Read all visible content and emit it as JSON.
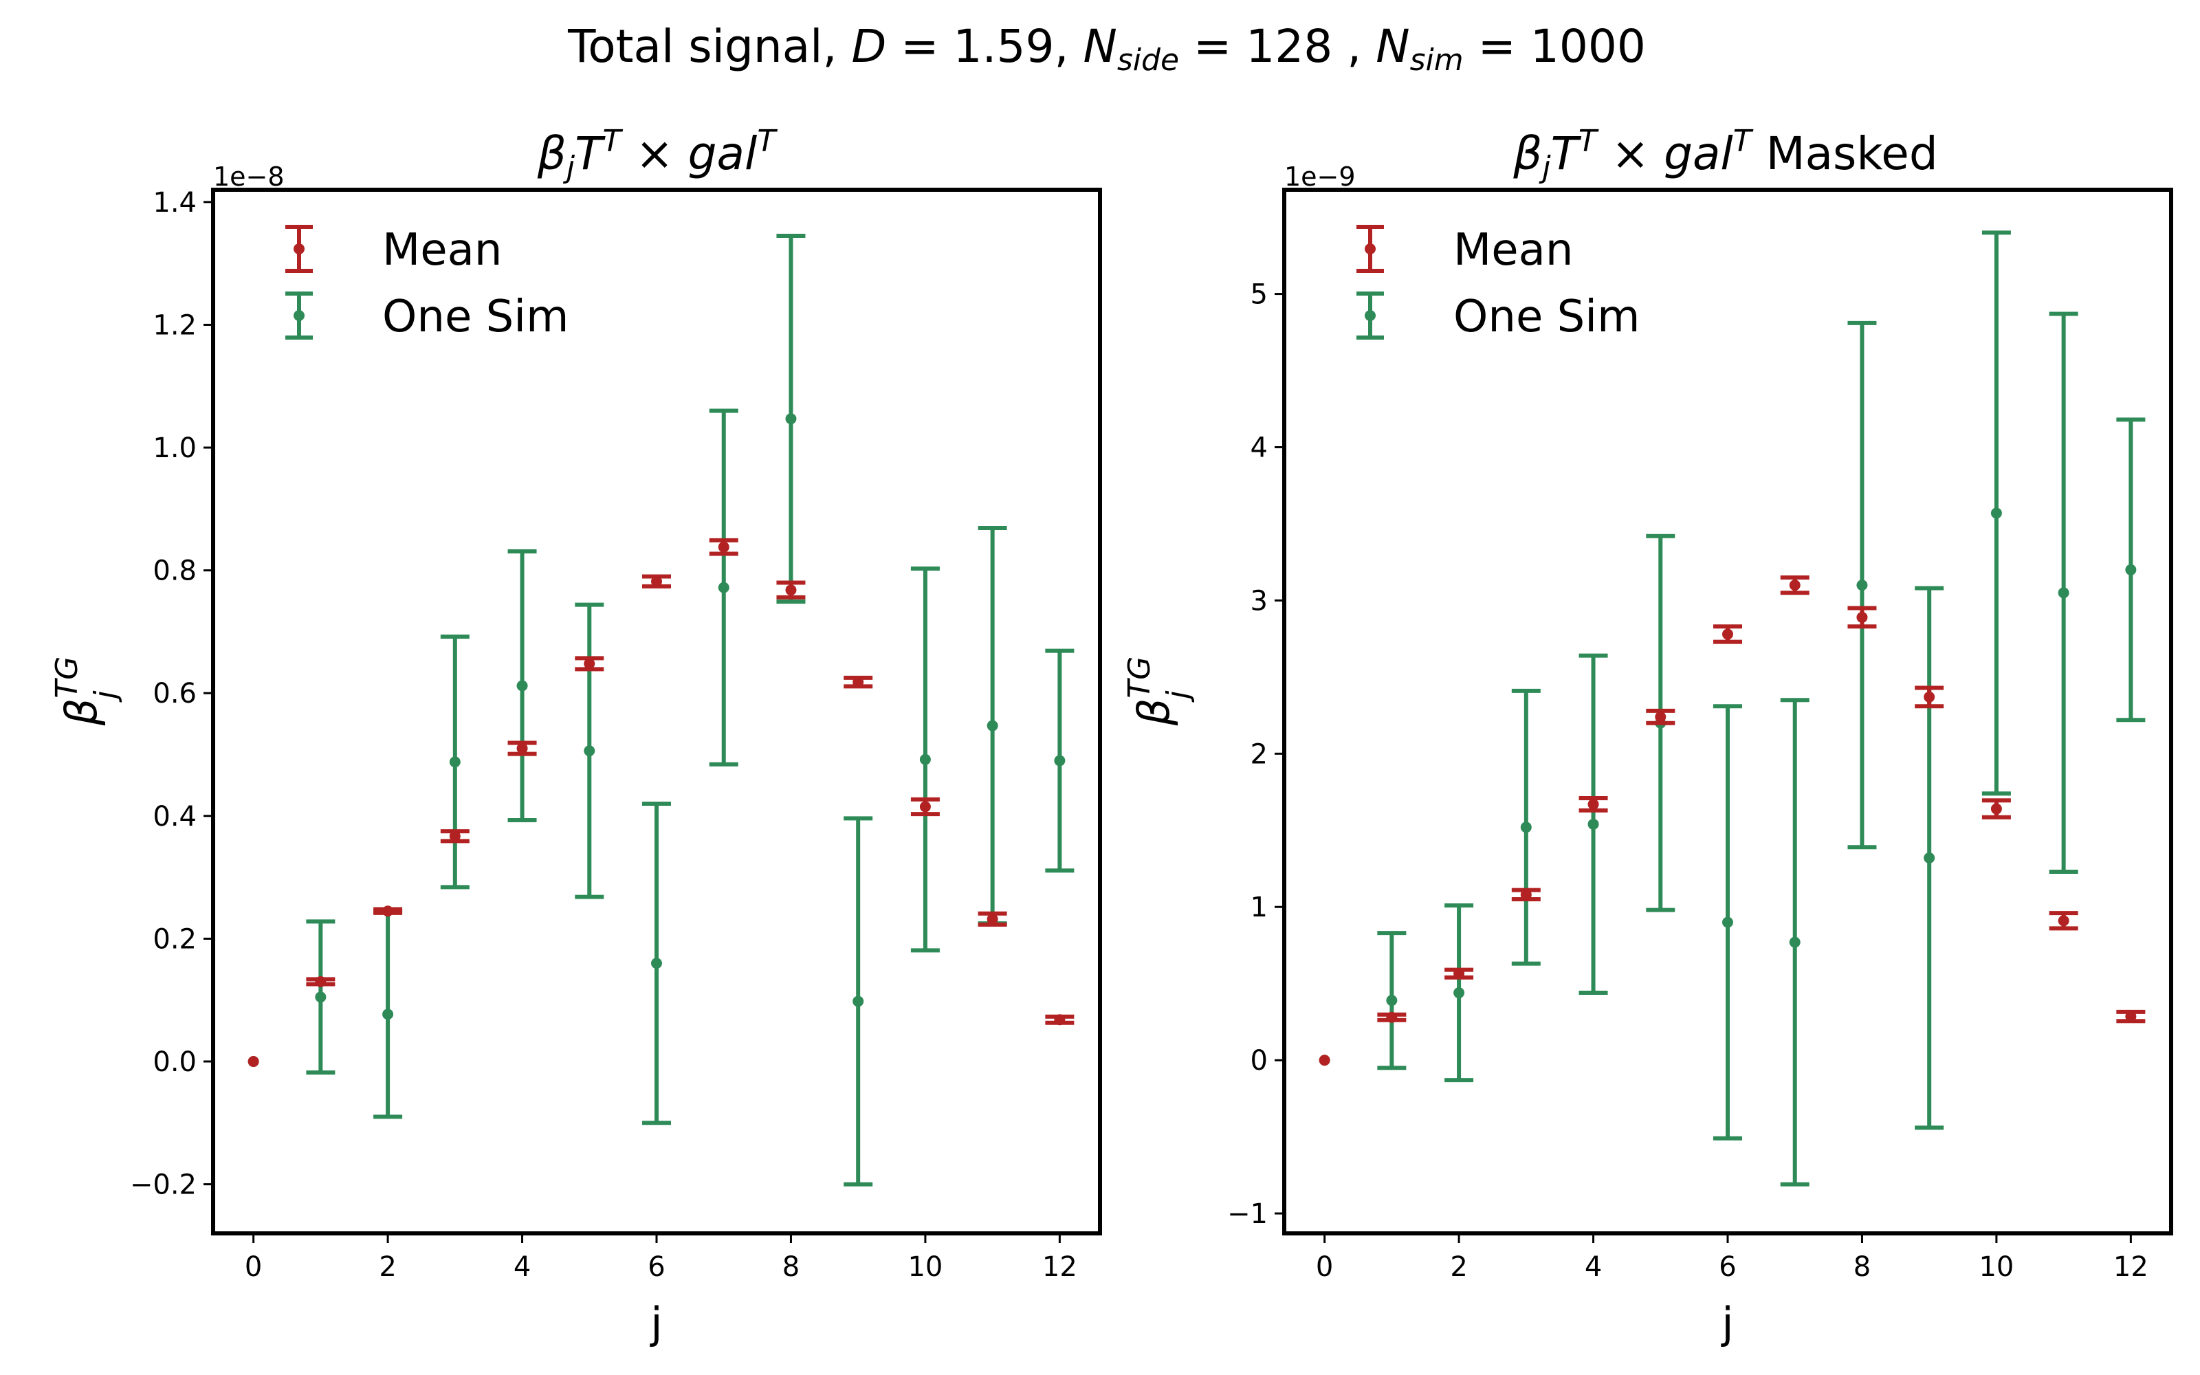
{
  "colors": {
    "mean": "#b22222",
    "one_sim": "#2e8b57",
    "frame": "#000000"
  },
  "figure": {
    "suptitle": {
      "prefix": "Total signal, ",
      "d_sym": "D",
      "d_val": " = 1.59,",
      "nside_sym": "N",
      "nside_sub": "side",
      "nside_val": " = 128 ,",
      "nsim_sym": "N",
      "nsim_sub": "sim",
      "nsim_val": " = 1000"
    }
  },
  "chart_data": [
    {
      "type": "scatter",
      "title": {
        "beta": "β",
        "sub_j": "j",
        "T": "T",
        "sup_T": "T",
        "times": " × ",
        "gal": "gal",
        "sup_T2": "T",
        "suffix": ""
      },
      "xlabel": "j",
      "ylabel": {
        "beta": "β",
        "sup": "TG",
        "sub": "j"
      },
      "offset_text": "1e−8",
      "x_ticks": [
        0,
        2,
        4,
        6,
        8,
        10,
        12
      ],
      "x_tick_labels": [
        "0",
        "2",
        "4",
        "6",
        "8",
        "10",
        "12"
      ],
      "y_ticks": [
        -0.2,
        0.0,
        0.2,
        0.4,
        0.6,
        0.8,
        1.0,
        1.2,
        1.4
      ],
      "y_tick_labels": [
        "−0.2",
        "0.0",
        "0.2",
        "0.4",
        "0.6",
        "0.8",
        "1.0",
        "1.2",
        "1.4"
      ],
      "xlim": [
        -0.6,
        12.6
      ],
      "ylim": [
        -0.28,
        1.42
      ],
      "legend": {
        "placement": "top-left",
        "entries": [
          "Mean",
          "One Sim"
        ]
      },
      "series": [
        {
          "name": "Mean",
          "color": "#b22222",
          "x": [
            0,
            1,
            2,
            3,
            4,
            5,
            6,
            7,
            8,
            9,
            10,
            11,
            12
          ],
          "y": [
            0.0,
            0.13,
            0.245,
            0.367,
            0.51,
            0.648,
            0.782,
            0.838,
            0.768,
            0.618,
            0.415,
            0.232,
            0.068
          ],
          "yerr": [
            0.0,
            0.004,
            0.003,
            0.008,
            0.009,
            0.009,
            0.008,
            0.011,
            0.012,
            0.007,
            0.012,
            0.009,
            0.005
          ]
        },
        {
          "name": "One Sim",
          "color": "#2e8b57",
          "x": [
            0,
            1,
            2,
            3,
            4,
            5,
            6,
            7,
            8,
            9,
            10,
            11,
            12
          ],
          "y": [
            0.0,
            0.105,
            0.077,
            0.488,
            0.612,
            0.506,
            0.16,
            0.772,
            1.047,
            0.098,
            0.492,
            0.547,
            0.49
          ],
          "yerr": [
            0.0,
            0.123,
            0.167,
            0.204,
            0.219,
            0.238,
            0.26,
            0.288,
            0.298,
            0.298,
            0.311,
            0.322,
            0.179
          ]
        }
      ]
    },
    {
      "type": "scatter",
      "title": {
        "beta": "β",
        "sub_j": "j",
        "T": "T",
        "sup_T": "T",
        "times": " × ",
        "gal": "gal",
        "sup_T2": "T",
        "suffix": " Masked"
      },
      "xlabel": "j",
      "ylabel": {
        "beta": "β",
        "sup": "TG",
        "sub": "j"
      },
      "offset_text": "1e−9",
      "x_ticks": [
        0,
        2,
        4,
        6,
        8,
        10,
        12
      ],
      "x_tick_labels": [
        "0",
        "2",
        "4",
        "6",
        "8",
        "10",
        "12"
      ],
      "y_ticks": [
        -1,
        0,
        1,
        2,
        3,
        4,
        5
      ],
      "y_tick_labels": [
        "−1",
        "0",
        "1",
        "2",
        "3",
        "4",
        "5"
      ],
      "xlim": [
        -0.6,
        12.6
      ],
      "ylim": [
        -1.13,
        5.68
      ],
      "legend": {
        "placement": "top-left",
        "entries": [
          "Mean",
          "One Sim"
        ]
      },
      "series": [
        {
          "name": "Mean",
          "color": "#b22222",
          "x": [
            0,
            1,
            2,
            3,
            4,
            5,
            6,
            7,
            8,
            9,
            10,
            11,
            12
          ],
          "y": [
            0.0,
            0.28,
            0.565,
            1.08,
            1.67,
            2.24,
            2.78,
            3.1,
            2.89,
            2.37,
            1.64,
            0.91,
            0.285
          ],
          "yerr": [
            0.0,
            0.018,
            0.025,
            0.03,
            0.04,
            0.04,
            0.05,
            0.05,
            0.06,
            0.06,
            0.055,
            0.05,
            0.03
          ]
        },
        {
          "name": "One Sim",
          "color": "#2e8b57",
          "x": [
            0,
            1,
            2,
            3,
            4,
            5,
            6,
            7,
            8,
            9,
            10,
            11,
            12
          ],
          "y": [
            0.0,
            0.39,
            0.44,
            1.52,
            1.54,
            2.2,
            0.9,
            0.77,
            3.1,
            1.32,
            3.57,
            3.05,
            3.2
          ],
          "yerr": [
            0.0,
            0.44,
            0.57,
            0.89,
            1.1,
            1.22,
            1.41,
            1.58,
            1.71,
            1.76,
            1.83,
            1.82,
            0.98
          ]
        }
      ]
    }
  ]
}
